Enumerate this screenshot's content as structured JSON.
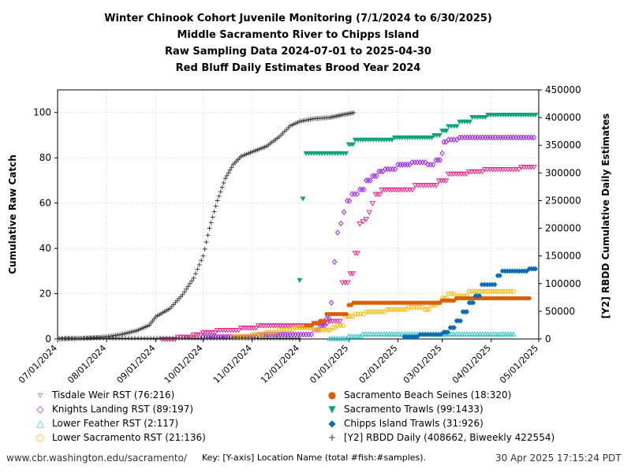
{
  "chart_data": {
    "type": "scatter",
    "title": "Winter Chinook Cohort Juvenile Monitoring (7/1/2024 to 6/30/2025)",
    "subtitle_1": "Middle Sacramento River to Chipps Island",
    "subtitle_2": "Raw Sampling Data 2024-07-01 to 2025-04-30",
    "subtitle_3": "Red Bluff Daily Estimates Brood Year 2024",
    "ylabel": "Cumulative Raw Catch",
    "y2label": "[Y2] RBDD Cumulative Daily Estimates",
    "xlim": [
      "2024-07-01",
      "2025-05-01"
    ],
    "ylim": [
      0,
      110
    ],
    "y2lim": [
      0,
      450000
    ],
    "x_ticks": [
      "07/01/2024",
      "08/01/2024",
      "09/01/2024",
      "10/01/2024",
      "11/01/2024",
      "12/01/2024",
      "01/01/2025",
      "02/01/2025",
      "03/01/2025",
      "04/01/2025",
      "05/01/2025"
    ],
    "y_ticks": [
      "0",
      "20",
      "40",
      "60",
      "80",
      "100"
    ],
    "y2_ticks": [
      "0",
      "50000",
      "100000",
      "150000",
      "200000",
      "250000",
      "300000",
      "350000",
      "400000",
      "450000"
    ],
    "grid": true,
    "series": [
      {
        "name": "Tisdale Weir RST (76:216)",
        "color": "#e7298a",
        "marker": "tri_down",
        "axis": "y",
        "points": [
          [
            "2024-09-05",
            0
          ],
          [
            "2024-09-15",
            1
          ],
          [
            "2024-09-25",
            2
          ],
          [
            "2024-10-01",
            3
          ],
          [
            "2024-10-10",
            4
          ],
          [
            "2024-10-25",
            5
          ],
          [
            "2024-11-05",
            6
          ],
          [
            "2024-11-25",
            6
          ],
          [
            "2024-12-10",
            7
          ],
          [
            "2024-12-20",
            8
          ],
          [
            "2024-12-28",
            25
          ],
          [
            "2025-01-02",
            29
          ],
          [
            "2025-01-05",
            38
          ],
          [
            "2025-01-08",
            51
          ],
          [
            "2025-01-10",
            52
          ],
          [
            "2025-01-12",
            53
          ],
          [
            "2025-01-14",
            56
          ],
          [
            "2025-01-16",
            60
          ],
          [
            "2025-01-18",
            64
          ],
          [
            "2025-01-22",
            66
          ],
          [
            "2025-02-05",
            66
          ],
          [
            "2025-02-12",
            68
          ],
          [
            "2025-02-22",
            68
          ],
          [
            "2025-02-27",
            70
          ],
          [
            "2025-03-05",
            73
          ],
          [
            "2025-03-18",
            74
          ],
          [
            "2025-03-28",
            75
          ],
          [
            "2025-04-10",
            75
          ],
          [
            "2025-04-20",
            76
          ],
          [
            "2025-04-28",
            76
          ]
        ]
      },
      {
        "name": "Knights Landing RST (89:197)",
        "color": "#9b1fe8",
        "marker": "diamond",
        "axis": "y",
        "points": [
          [
            "2024-10-01",
            1
          ],
          [
            "2024-10-20",
            1
          ],
          [
            "2024-11-05",
            2
          ],
          [
            "2024-11-25",
            2
          ],
          [
            "2024-12-10",
            4
          ],
          [
            "2024-12-14",
            6
          ],
          [
            "2024-12-18",
            9
          ],
          [
            "2024-12-21",
            16
          ],
          [
            "2024-12-23",
            34
          ],
          [
            "2024-12-25",
            47
          ],
          [
            "2024-12-27",
            51
          ],
          [
            "2024-12-29",
            56
          ],
          [
            "2024-12-31",
            61
          ],
          [
            "2025-01-03",
            64
          ],
          [
            "2025-01-08",
            66
          ],
          [
            "2025-01-12",
            70
          ],
          [
            "2025-01-16",
            72
          ],
          [
            "2025-01-20",
            74
          ],
          [
            "2025-01-24",
            75
          ],
          [
            "2025-02-01",
            77
          ],
          [
            "2025-02-10",
            78
          ],
          [
            "2025-02-20",
            77
          ],
          [
            "2025-02-25",
            79
          ],
          [
            "2025-03-01",
            82
          ],
          [
            "2025-03-02",
            87
          ],
          [
            "2025-03-05",
            88
          ],
          [
            "2025-03-12",
            89
          ],
          [
            "2025-03-25",
            89
          ],
          [
            "2025-04-10",
            89
          ],
          [
            "2025-04-28",
            89
          ]
        ]
      },
      {
        "name": "Lower Feather RST (2:117)",
        "color": "#2ec4c4",
        "marker": "tri_up",
        "axis": "y",
        "points": [
          [
            "2024-12-20",
            0
          ],
          [
            "2025-01-01",
            1
          ],
          [
            "2025-01-10",
            2
          ],
          [
            "2025-01-25",
            2
          ],
          [
            "2025-02-10",
            2
          ],
          [
            "2025-02-25",
            2
          ],
          [
            "2025-03-10",
            2
          ],
          [
            "2025-03-25",
            2
          ],
          [
            "2025-04-07",
            2
          ],
          [
            "2025-04-15",
            2
          ]
        ]
      },
      {
        "name": "Lower Sacramento RST (21:136)",
        "color": "#f2b700",
        "marker": "circle_open",
        "axis": "y",
        "points": [
          [
            "2024-10-20",
            1
          ],
          [
            "2024-11-01",
            2
          ],
          [
            "2024-11-10",
            3
          ],
          [
            "2024-11-18",
            4
          ],
          [
            "2024-11-28",
            5
          ],
          [
            "2024-12-10",
            4
          ],
          [
            "2024-12-22",
            5
          ],
          [
            "2024-12-25",
            6
          ],
          [
            "2024-12-30",
            10
          ],
          [
            "2025-01-05",
            11
          ],
          [
            "2025-01-12",
            12
          ],
          [
            "2025-01-25",
            13
          ],
          [
            "2025-02-08",
            14
          ],
          [
            "2025-02-18",
            13
          ],
          [
            "2025-02-22",
            15
          ],
          [
            "2025-02-26",
            16
          ],
          [
            "2025-03-01",
            18
          ],
          [
            "2025-03-05",
            20
          ],
          [
            "2025-03-10",
            19
          ],
          [
            "2025-03-18",
            21
          ],
          [
            "2025-03-28",
            21
          ],
          [
            "2025-04-05",
            21
          ],
          [
            "2025-04-15",
            21
          ]
        ]
      },
      {
        "name": "Sacramento Beach Seines (18:320)",
        "color": "#d95f02",
        "marker": "dot",
        "axis": "y",
        "points": [
          [
            "2024-12-05",
            6
          ],
          [
            "2024-12-10",
            7
          ],
          [
            "2024-12-14",
            8
          ],
          [
            "2024-12-18",
            11
          ],
          [
            "2025-01-01",
            15
          ],
          [
            "2025-01-04",
            16
          ],
          [
            "2025-01-10",
            16
          ],
          [
            "2025-01-20",
            16
          ],
          [
            "2025-02-05",
            16
          ],
          [
            "2025-03-01",
            17
          ],
          [
            "2025-03-10",
            18
          ],
          [
            "2025-03-20",
            18
          ],
          [
            "2025-04-01",
            18
          ],
          [
            "2025-04-15",
            18
          ],
          [
            "2025-04-25",
            18
          ]
        ]
      },
      {
        "name": "Sacramento Trawls (99:1433)",
        "color": "#0ba37a",
        "marker": "tri_down_filled",
        "axis": "y",
        "points": [
          [
            "2024-12-01",
            26
          ],
          [
            "2024-12-03",
            62
          ],
          [
            "2024-12-05",
            82
          ],
          [
            "2024-12-15",
            82
          ],
          [
            "2024-12-25",
            82
          ],
          [
            "2025-01-01",
            86
          ],
          [
            "2025-01-05",
            88
          ],
          [
            "2025-01-15",
            88
          ],
          [
            "2025-01-30",
            89
          ],
          [
            "2025-02-15",
            89
          ],
          [
            "2025-02-24",
            90
          ],
          [
            "2025-03-01",
            92
          ],
          [
            "2025-03-05",
            94
          ],
          [
            "2025-03-12",
            96
          ],
          [
            "2025-03-20",
            98
          ],
          [
            "2025-03-30",
            99
          ],
          [
            "2025-04-15",
            99
          ],
          [
            "2025-04-29",
            99
          ]
        ]
      },
      {
        "name": "Chipps Island Trawls (31:926)",
        "color": "#0a6bb3",
        "marker": "diamond_filled",
        "axis": "y",
        "points": [
          [
            "2025-02-05",
            1
          ],
          [
            "2025-02-15",
            2
          ],
          [
            "2025-02-25",
            2
          ],
          [
            "2025-03-02",
            3
          ],
          [
            "2025-03-06",
            5
          ],
          [
            "2025-03-10",
            8
          ],
          [
            "2025-03-14",
            12
          ],
          [
            "2025-03-18",
            16
          ],
          [
            "2025-03-22",
            19
          ],
          [
            "2025-03-26",
            24
          ],
          [
            "2025-04-05",
            28
          ],
          [
            "2025-04-08",
            30
          ],
          [
            "2025-04-25",
            31
          ],
          [
            "2025-04-29",
            31
          ]
        ]
      },
      {
        "name": "[Y2] RBDD Daily (408662, Biweekly 422554)",
        "color": "#333333",
        "marker": "plus",
        "axis": "y2",
        "points": [
          [
            "2024-07-01",
            0
          ],
          [
            "2024-07-15",
            1000
          ],
          [
            "2024-08-01",
            4000
          ],
          [
            "2024-08-10",
            8000
          ],
          [
            "2024-08-20",
            15000
          ],
          [
            "2024-08-28",
            25000
          ],
          [
            "2024-09-01",
            40000
          ],
          [
            "2024-09-10",
            55000
          ],
          [
            "2024-09-18",
            80000
          ],
          [
            "2024-09-25",
            110000
          ],
          [
            "2024-10-01",
            150000
          ],
          [
            "2024-10-05",
            200000
          ],
          [
            "2024-10-10",
            250000
          ],
          [
            "2024-10-15",
            290000
          ],
          [
            "2024-10-20",
            315000
          ],
          [
            "2024-10-25",
            330000
          ],
          [
            "2024-11-01",
            338000
          ],
          [
            "2024-11-10",
            348000
          ],
          [
            "2024-11-18",
            365000
          ],
          [
            "2024-11-25",
            385000
          ],
          [
            "2024-12-01",
            393000
          ],
          [
            "2024-12-10",
            398000
          ],
          [
            "2024-12-20",
            400000
          ],
          [
            "2024-12-25",
            403000
          ],
          [
            "2024-12-28",
            405000
          ],
          [
            "2025-01-01",
            407000
          ],
          [
            "2025-01-04",
            408662
          ]
        ]
      }
    ]
  },
  "legend": {
    "col1": [
      {
        "label": "Tisdale Weir RST (76:216)",
        "symbol": "▿",
        "color": "#e7298a"
      },
      {
        "label": "Knights Landing RST (89:197)",
        "symbol": "◇",
        "color": "#9b1fe8"
      },
      {
        "label": "Lower Feather RST (2:117)",
        "symbol": "△",
        "color": "#2ec4c4"
      },
      {
        "label": "Lower Sacramento RST (21:136)",
        "symbol": "○",
        "color": "#f2b700"
      }
    ],
    "col2": [
      {
        "label": "Sacramento Beach Seines (18:320)",
        "symbol": "●",
        "color": "#d95f02"
      },
      {
        "label": "Sacramento Trawls (99:1433)",
        "symbol": "▼",
        "color": "#0ba37a"
      },
      {
        "label": "Chipps Island Trawls (31:926)",
        "symbol": "◆",
        "color": "#0a6bb3"
      },
      {
        "label": "[Y2] RBDD Daily (408662, Biweekly 422554)",
        "symbol": "+",
        "color": "#333333"
      }
    ]
  },
  "footer": {
    "site": "www.cbr.washington.edu/sacramento/",
    "key": "Key: [Y-axis] Location Name (total #fish:#samples).",
    "timestamp": "30 Apr 2025 17:15:24 PDT"
  }
}
